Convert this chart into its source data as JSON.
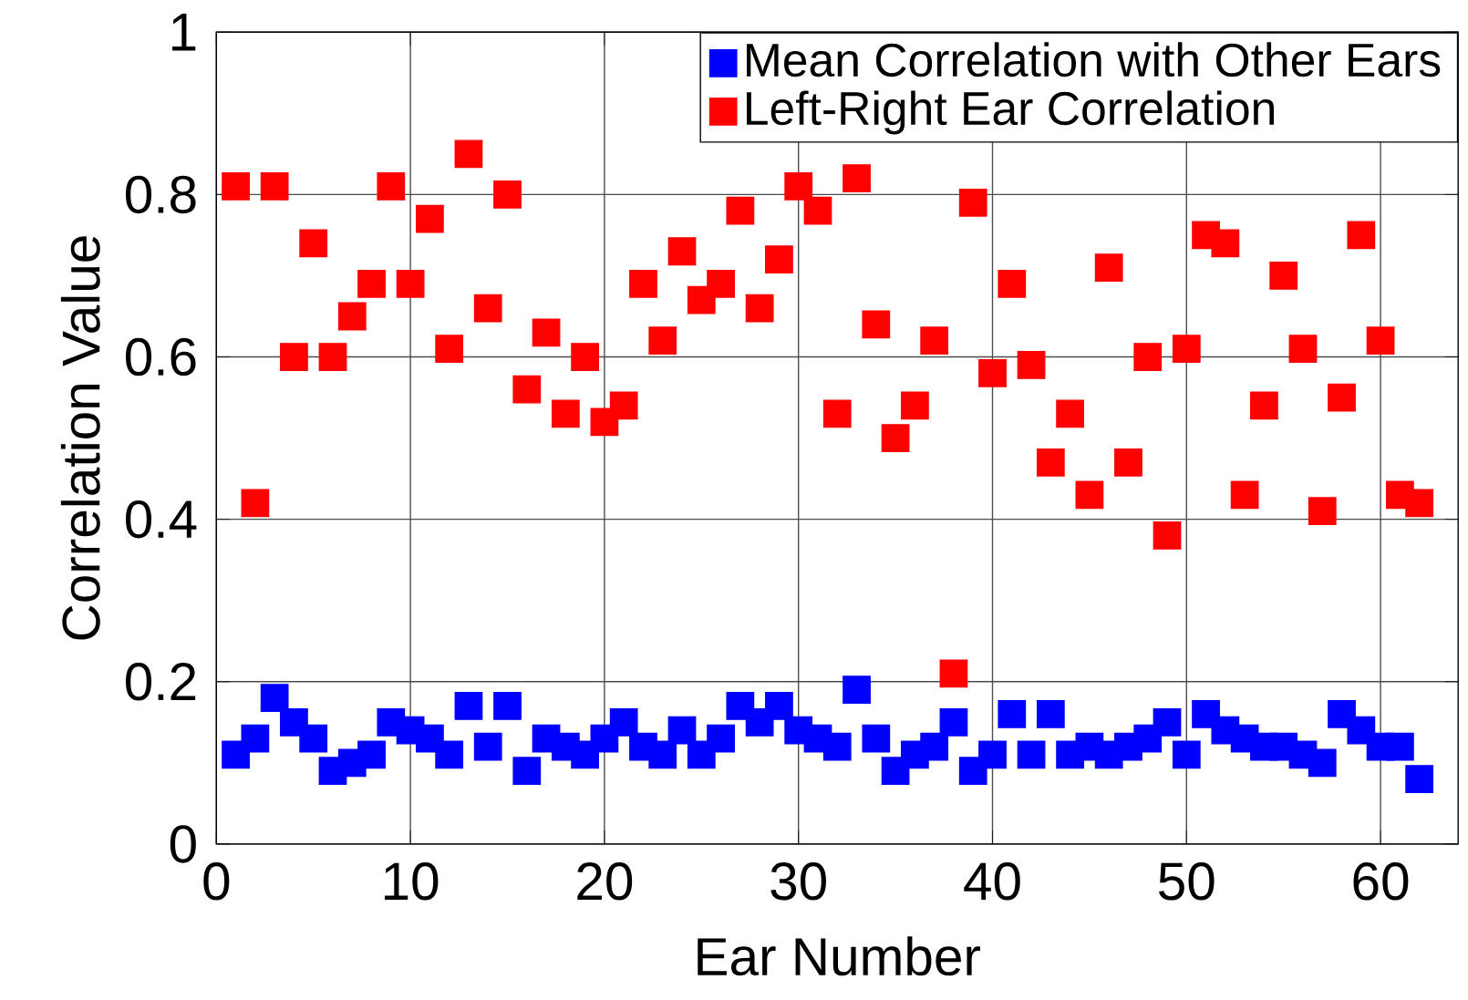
{
  "chart_data": {
    "type": "scatter",
    "xlabel": "Ear Number",
    "ylabel": "Correlation Value",
    "x": [
      1,
      2,
      3,
      4,
      5,
      6,
      7,
      8,
      9,
      10,
      11,
      12,
      13,
      14,
      15,
      16,
      17,
      18,
      19,
      20,
      21,
      22,
      23,
      24,
      25,
      26,
      27,
      28,
      29,
      30,
      31,
      32,
      33,
      34,
      35,
      36,
      37,
      38,
      39,
      40,
      41,
      42,
      43,
      44,
      45,
      46,
      47,
      48,
      49,
      50,
      51,
      52,
      53,
      54,
      55,
      56,
      57,
      58,
      59,
      60,
      61,
      62
    ],
    "series": [
      {
        "name": "Mean Correlation with Other Ears",
        "color": "#0000ff",
        "values": [
          0.11,
          0.13,
          0.18,
          0.15,
          0.13,
          0.09,
          0.1,
          0.11,
          0.15,
          0.14,
          0.13,
          0.11,
          0.17,
          0.12,
          0.17,
          0.09,
          0.13,
          0.12,
          0.11,
          0.13,
          0.15,
          0.12,
          0.11,
          0.14,
          0.11,
          0.13,
          0.17,
          0.15,
          0.17,
          0.14,
          0.13,
          0.12,
          0.19,
          0.13,
          0.09,
          0.11,
          0.12,
          0.15,
          0.09,
          0.11,
          0.16,
          0.11,
          0.16,
          0.11,
          0.12,
          0.11,
          0.12,
          0.13,
          0.15,
          0.11,
          0.16,
          0.14,
          0.13,
          0.12,
          0.12,
          0.11,
          0.1,
          0.16,
          0.14,
          0.12,
          0.12,
          0.08
        ]
      },
      {
        "name": "Left-Right Ear Correlation",
        "color": "#ff0000",
        "values": [
          0.81,
          0.42,
          0.81,
          0.6,
          0.74,
          0.6,
          0.65,
          0.69,
          0.81,
          0.69,
          0.77,
          0.61,
          0.85,
          0.66,
          0.8,
          0.56,
          0.63,
          0.53,
          0.6,
          0.52,
          0.54,
          0.69,
          0.62,
          0.73,
          0.67,
          0.69,
          0.78,
          0.66,
          0.72,
          0.81,
          0.78,
          0.53,
          0.82,
          0.64,
          0.5,
          0.54,
          0.62,
          0.21,
          0.79,
          0.58,
          0.69,
          0.59,
          0.47,
          0.53,
          0.43,
          0.71,
          0.47,
          0.6,
          0.38,
          0.61,
          0.75,
          0.74,
          0.43,
          0.54,
          0.7,
          0.61,
          0.41,
          0.55,
          0.75,
          0.62,
          0.43,
          0.42
        ]
      }
    ],
    "xlim": [
      0,
      64
    ],
    "ylim": [
      0,
      1
    ],
    "xticks": [
      0,
      10,
      20,
      30,
      40,
      50,
      60
    ],
    "yticks": [
      0,
      0.2,
      0.4,
      0.6,
      0.8,
      1
    ],
    "grid": true,
    "legend": "top right",
    "marker": "square"
  }
}
